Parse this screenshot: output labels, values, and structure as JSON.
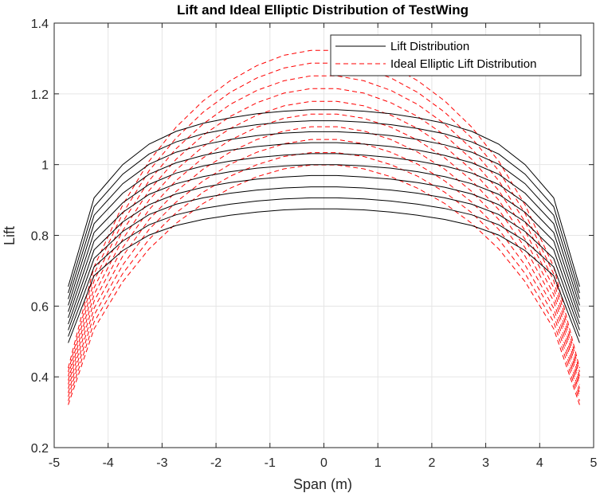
{
  "chart_data": {
    "type": "line",
    "title": "Lift and Ideal Elliptic Distribution of TestWing",
    "xlabel": "Span (m)",
    "ylabel": "Lift",
    "xlim": [
      -5,
      5
    ],
    "ylim": [
      0.2,
      1.4
    ],
    "xticks": [
      "-5",
      "-4",
      "-3",
      "-2",
      "-1",
      "0",
      "1",
      "2",
      "3",
      "4",
      "5"
    ],
    "yticks": [
      "0.2",
      "0.4",
      "0.6",
      "0.8",
      "1",
      "1.2",
      "1.4"
    ],
    "grid": true,
    "legend_location": "top-right",
    "x": [
      -4.74,
      -4.26,
      -3.73,
      -3.24,
      -2.74,
      -2.24,
      -1.74,
      -1.24,
      -0.74,
      -0.24,
      0.24,
      0.74,
      1.24,
      1.74,
      2.24,
      2.74,
      3.24,
      3.73,
      4.26,
      4.74
    ],
    "lift_colors": {
      "lift": "#000000",
      "ideal": "#ff0000"
    },
    "series": [
      {
        "name": "Lift Distribution",
        "style": "solid",
        "color": "#000000",
        "curves": [
          {
            "values": [
              0.496,
              0.686,
              0.757,
              0.801,
              0.828,
              0.845,
              0.857,
              0.866,
              0.872,
              0.875,
              0.875,
              0.872,
              0.866,
              0.857,
              0.845,
              0.828,
              0.801,
              0.757,
              0.686,
              0.496
            ]
          },
          {
            "values": [
              0.514,
              0.711,
              0.784,
              0.83,
              0.858,
              0.876,
              0.888,
              0.897,
              0.903,
              0.906,
              0.906,
              0.903,
              0.897,
              0.888,
              0.876,
              0.858,
              0.83,
              0.784,
              0.711,
              0.514
            ]
          },
          {
            "values": [
              0.532,
              0.735,
              0.811,
              0.859,
              0.888,
              0.906,
              0.919,
              0.928,
              0.934,
              0.937,
              0.937,
              0.934,
              0.928,
              0.919,
              0.906,
              0.888,
              0.859,
              0.811,
              0.735,
              0.532
            ]
          },
          {
            "values": [
              0.549,
              0.759,
              0.838,
              0.887,
              0.917,
              0.936,
              0.949,
              0.959,
              0.965,
              0.969,
              0.969,
              0.965,
              0.959,
              0.949,
              0.936,
              0.917,
              0.887,
              0.838,
              0.759,
              0.549
            ]
          },
          {
            "values": [
              0.567,
              0.784,
              0.865,
              0.916,
              0.946,
              0.966,
              0.98,
              0.99,
              0.996,
              1.0,
              1.0,
              0.996,
              0.99,
              0.98,
              0.966,
              0.946,
              0.916,
              0.865,
              0.784,
              0.567
            ]
          },
          {
            "values": [
              0.584,
              0.808,
              0.892,
              0.944,
              0.976,
              0.996,
              1.01,
              1.02,
              1.027,
              1.031,
              1.031,
              1.027,
              1.02,
              1.01,
              0.996,
              0.976,
              0.944,
              0.892,
              0.808,
              0.584
            ]
          },
          {
            "values": [
              0.602,
              0.833,
              0.919,
              0.973,
              1.005,
              1.026,
              1.041,
              1.051,
              1.058,
              1.062,
              1.062,
              1.058,
              1.051,
              1.041,
              1.026,
              1.005,
              0.973,
              0.919,
              0.833,
              0.602
            ]
          },
          {
            "values": [
              0.62,
              0.857,
              0.946,
              1.001,
              1.035,
              1.056,
              1.071,
              1.082,
              1.089,
              1.093,
              1.093,
              1.089,
              1.082,
              1.071,
              1.056,
              1.035,
              1.001,
              0.946,
              0.857,
              0.62
            ]
          },
          {
            "values": [
              0.637,
              0.881,
              0.973,
              1.03,
              1.064,
              1.087,
              1.102,
              1.113,
              1.12,
              1.124,
              1.124,
              1.12,
              1.113,
              1.102,
              1.087,
              1.064,
              1.03,
              0.973,
              0.881,
              0.637
            ]
          },
          {
            "values": [
              0.655,
              0.906,
              1.0,
              1.058,
              1.094,
              1.117,
              1.132,
              1.144,
              1.151,
              1.155,
              1.155,
              1.151,
              1.144,
              1.132,
              1.117,
              1.094,
              1.058,
              1.0,
              0.906,
              0.655
            ]
          }
        ]
      },
      {
        "name": "Ideal Elliptic Lift Distribution",
        "style": "dashed",
        "color": "#ff0000",
        "curves": [
          {
            "values": [
              0.321,
              0.536,
              0.669,
              0.762,
              0.834,
              0.89,
              0.933,
              0.966,
              0.988,
              0.999,
              0.999,
              0.988,
              0.966,
              0.933,
              0.89,
              0.834,
              0.762,
              0.669,
              0.536,
              0.321
            ]
          },
          {
            "values": [
              0.332,
              0.555,
              0.692,
              0.789,
              0.864,
              0.922,
              0.967,
              1.0,
              1.023,
              1.034,
              1.034,
              1.023,
              1.0,
              0.967,
              0.922,
              0.864,
              0.789,
              0.692,
              0.555,
              0.332
            ]
          },
          {
            "values": [
              0.344,
              0.575,
              0.716,
              0.817,
              0.894,
              0.954,
              1.001,
              1.035,
              1.059,
              1.071,
              1.071,
              1.059,
              1.035,
              1.001,
              0.954,
              0.894,
              0.817,
              0.716,
              0.575,
              0.344
            ]
          },
          {
            "values": [
              0.355,
              0.594,
              0.741,
              0.845,
              0.924,
              0.987,
              1.035,
              1.071,
              1.095,
              1.107,
              1.107,
              1.095,
              1.071,
              1.035,
              0.987,
              0.924,
              0.845,
              0.741,
              0.594,
              0.355
            ]
          },
          {
            "values": [
              0.367,
              0.614,
              0.765,
              0.873,
              0.955,
              1.019,
              1.069,
              1.106,
              1.131,
              1.143,
              1.143,
              1.131,
              1.106,
              1.069,
              1.019,
              0.955,
              0.873,
              0.765,
              0.614,
              0.367
            ]
          },
          {
            "values": [
              0.379,
              0.633,
              0.789,
              0.9,
              0.985,
              1.051,
              1.102,
              1.14,
              1.166,
              1.179,
              1.179,
              1.166,
              1.14,
              1.102,
              1.051,
              0.985,
              0.9,
              0.789,
              0.633,
              0.379
            ]
          },
          {
            "values": [
              0.39,
              0.652,
              0.813,
              0.927,
              1.015,
              1.083,
              1.136,
              1.175,
              1.202,
              1.215,
              1.215,
              1.202,
              1.175,
              1.136,
              1.083,
              1.015,
              0.927,
              0.813,
              0.652,
              0.39
            ]
          },
          {
            "values": [
              0.402,
              0.672,
              0.838,
              0.955,
              1.045,
              1.115,
              1.17,
              1.21,
              1.237,
              1.251,
              1.251,
              1.237,
              1.21,
              1.17,
              1.115,
              1.045,
              0.955,
              0.838,
              0.672,
              0.402
            ]
          },
          {
            "values": [
              0.414,
              0.691,
              0.862,
              0.983,
              1.075,
              1.148,
              1.204,
              1.245,
              1.273,
              1.287,
              1.287,
              1.273,
              1.245,
              1.204,
              1.148,
              1.075,
              0.983,
              0.862,
              0.691,
              0.414
            ]
          },
          {
            "values": [
              0.425,
              0.711,
              0.886,
              1.01,
              1.106,
              1.18,
              1.237,
              1.28,
              1.309,
              1.323,
              1.323,
              1.309,
              1.28,
              1.237,
              1.18,
              1.106,
              1.01,
              0.886,
              0.711,
              0.425
            ]
          }
        ]
      }
    ]
  }
}
